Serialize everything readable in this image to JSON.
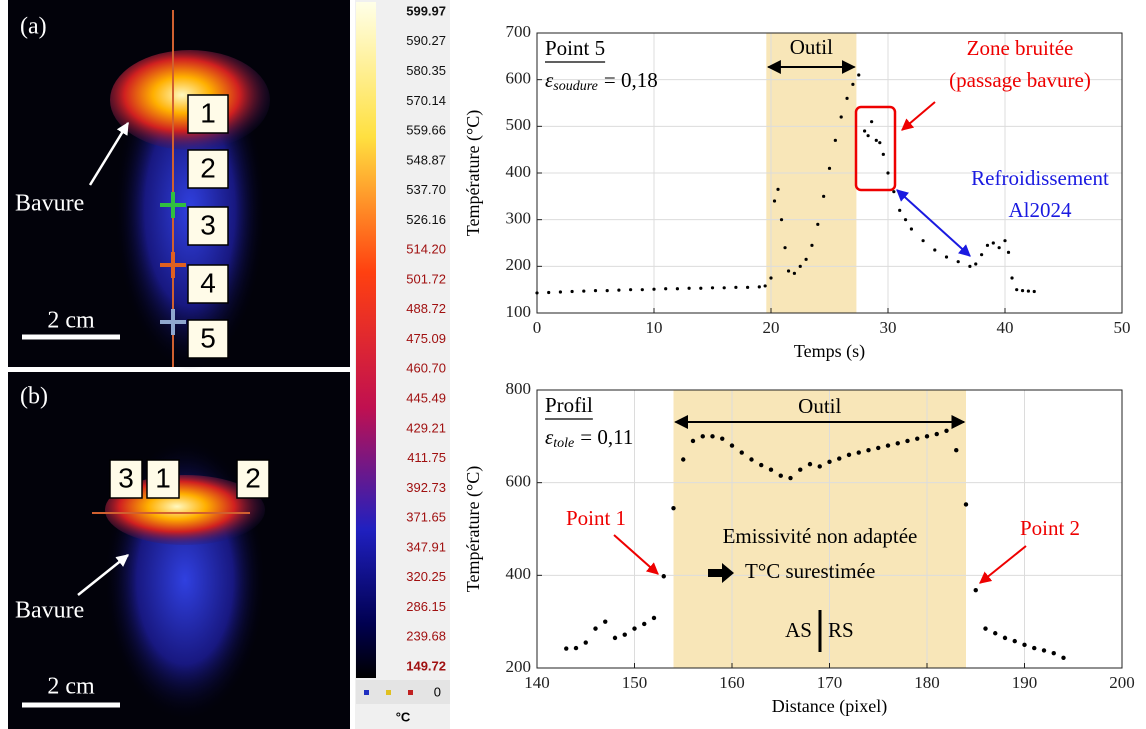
{
  "images": [
    {
      "panel_label": "(a)",
      "annotation": "Bavure",
      "scale": "2 cm",
      "point_labels": [
        "1",
        "2",
        "3",
        "4",
        "5"
      ]
    },
    {
      "panel_label": "(b)",
      "annotation": "Bavure",
      "scale": "2 cm",
      "point_labels": [
        "3",
        "1",
        "2"
      ]
    }
  ],
  "colorbar": {
    "labels": [
      "599.97",
      "590.27",
      "580.35",
      "570.14",
      "559.66",
      "548.87",
      "537.70",
      "526.16",
      "514.20",
      "501.72",
      "488.72",
      "475.09",
      "460.70",
      "445.49",
      "429.21",
      "411.75",
      "392.73",
      "371.65",
      "347.91",
      "320.25",
      "286.15",
      "239.68",
      "149.72"
    ],
    "footer_value": "0",
    "unit": "°C"
  },
  "chart_data": [
    {
      "type": "scatter",
      "xlabel": "Temps (s)",
      "ylabel": "Température (°C)",
      "color": "#000000",
      "x": [
        0,
        1,
        2,
        3,
        4,
        5,
        6,
        7,
        8,
        9,
        10,
        11,
        12,
        13,
        14,
        15,
        16,
        17,
        18,
        19,
        19.5,
        20,
        20.3,
        20.6,
        20.9,
        21.2,
        21.5,
        22,
        22.5,
        23,
        23.5,
        24,
        24.5,
        25,
        25.5,
        26,
        26.5,
        27,
        27.5,
        28,
        28.3,
        28.6,
        29,
        29.3,
        29.6,
        30,
        30.5,
        31,
        31.5,
        32,
        33,
        34,
        35,
        36,
        37,
        37.5,
        38,
        38.5,
        39,
        39.5,
        40,
        40.3,
        40.6,
        41,
        41.5,
        42,
        42.5
      ],
      "values": [
        143,
        144,
        145,
        146,
        147,
        148,
        148,
        149,
        150,
        150,
        151,
        152,
        152,
        153,
        153,
        154,
        154,
        155,
        155,
        156,
        158,
        175,
        340,
        365,
        300,
        240,
        190,
        185,
        200,
        215,
        245,
        290,
        350,
        410,
        470,
        520,
        560,
        590,
        610,
        490,
        480,
        510,
        470,
        465,
        440,
        400,
        360,
        320,
        300,
        280,
        255,
        235,
        220,
        210,
        200,
        205,
        225,
        245,
        250,
        240,
        255,
        230,
        175,
        150,
        148,
        147,
        146
      ],
      "xlim": [
        0,
        50
      ],
      "ylim": [
        100,
        700
      ],
      "xticks": [
        0,
        10,
        20,
        30,
        40,
        50
      ],
      "yticks": [
        100,
        200,
        300,
        400,
        500,
        600,
        700
      ],
      "grid": true,
      "band": [
        19.6,
        27.3
      ],
      "band_color": "#f8e6b8",
      "annotations": {
        "point_label": "Point 5",
        "epsilon": "ε",
        "epsilon_sub": "soudure",
        "epsilon_value": "= 0,18",
        "band_label": "Outil",
        "noise_label": [
          "Zone bruitée",
          "(passage bavure)"
        ],
        "cooling_label": [
          "Refroidissement",
          "Al2024"
        ]
      }
    },
    {
      "type": "scatter",
      "xlabel": "Distance (pixel)",
      "ylabel": "Température (°C)",
      "color": "#000000",
      "x": [
        143,
        144,
        145,
        146,
        147,
        148,
        149,
        150,
        151,
        152,
        153,
        154,
        155,
        156,
        157,
        158,
        159,
        160,
        161,
        162,
        163,
        164,
        165,
        166,
        167,
        168,
        169,
        170,
        171,
        172,
        173,
        174,
        175,
        176,
        177,
        178,
        179,
        180,
        181,
        182,
        183,
        184,
        185,
        186,
        187,
        188,
        189,
        190,
        191,
        192,
        193,
        194
      ],
      "values": [
        242,
        243,
        255,
        285,
        300,
        265,
        272,
        285,
        295,
        308,
        398,
        545,
        650,
        690,
        700,
        700,
        695,
        680,
        665,
        650,
        638,
        628,
        615,
        610,
        628,
        640,
        635,
        645,
        652,
        660,
        665,
        670,
        675,
        680,
        685,
        690,
        695,
        700,
        705,
        712,
        670,
        553,
        368,
        285,
        275,
        265,
        258,
        250,
        243,
        238,
        232,
        222
      ],
      "xlim": [
        140,
        200
      ],
      "ylim": [
        200,
        800
      ],
      "xticks": [
        140,
        150,
        160,
        170,
        180,
        190,
        200
      ],
      "yticks": [
        200,
        400,
        600,
        800
      ],
      "grid": true,
      "band": [
        154,
        184
      ],
      "band_color": "#f8e6b8",
      "annotations": {
        "point_label": "Profil",
        "epsilon": "ε",
        "epsilon_sub": "tole",
        "epsilon_value": "= 0,11",
        "band_label": "Outil",
        "point1": "Point 1",
        "point2": "Point 2",
        "note": [
          "Emissivité non adaptée",
          "T°C surestimée"
        ],
        "side_left": "AS",
        "side_right": "RS"
      }
    }
  ]
}
